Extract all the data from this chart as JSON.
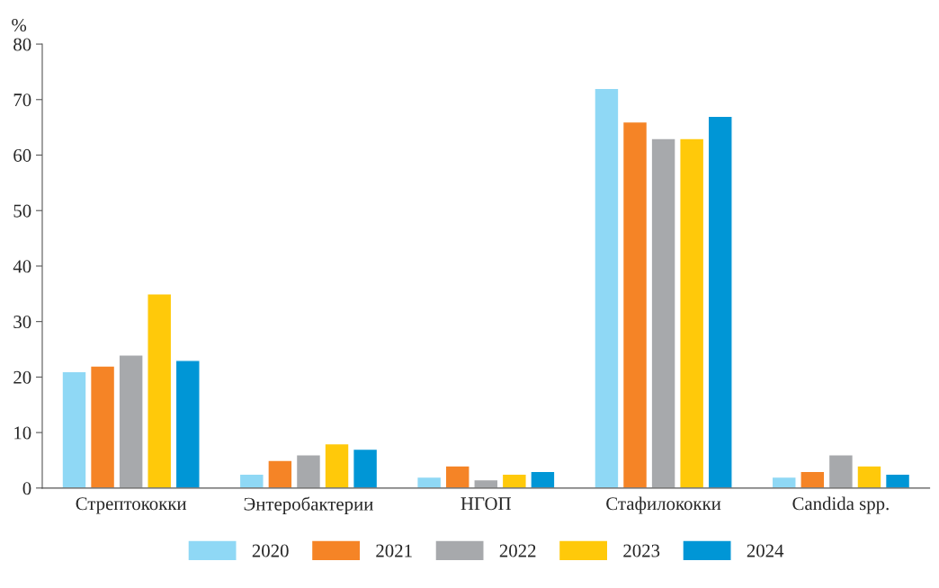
{
  "chart_data": {
    "type": "bar",
    "ylabel": "%",
    "categories": [
      "Стрептококки",
      "Энтеробактерии",
      "НГОП",
      "Стафилококки",
      "Candida spp."
    ],
    "series": [
      {
        "name": "2020",
        "color": "#8fd8f5",
        "values": [
          21,
          2.5,
          2,
          72,
          2
        ]
      },
      {
        "name": "2021",
        "color": "#f58426",
        "values": [
          22,
          5,
          4,
          66,
          3
        ]
      },
      {
        "name": "2022",
        "color": "#a7a9ac",
        "values": [
          24,
          6,
          1.5,
          63,
          6
        ]
      },
      {
        "name": "2023",
        "color": "#ffc90a",
        "values": [
          35,
          8,
          2.5,
          63,
          4
        ]
      },
      {
        "name": "2024",
        "color": "#0096d6",
        "values": [
          23,
          7,
          3,
          67,
          2.5
        ]
      }
    ],
    "ylim": [
      0,
      80
    ],
    "yticks": [
      0,
      10,
      20,
      30,
      40,
      50,
      60,
      70,
      80
    ],
    "grid": false,
    "legend": "bottom"
  }
}
